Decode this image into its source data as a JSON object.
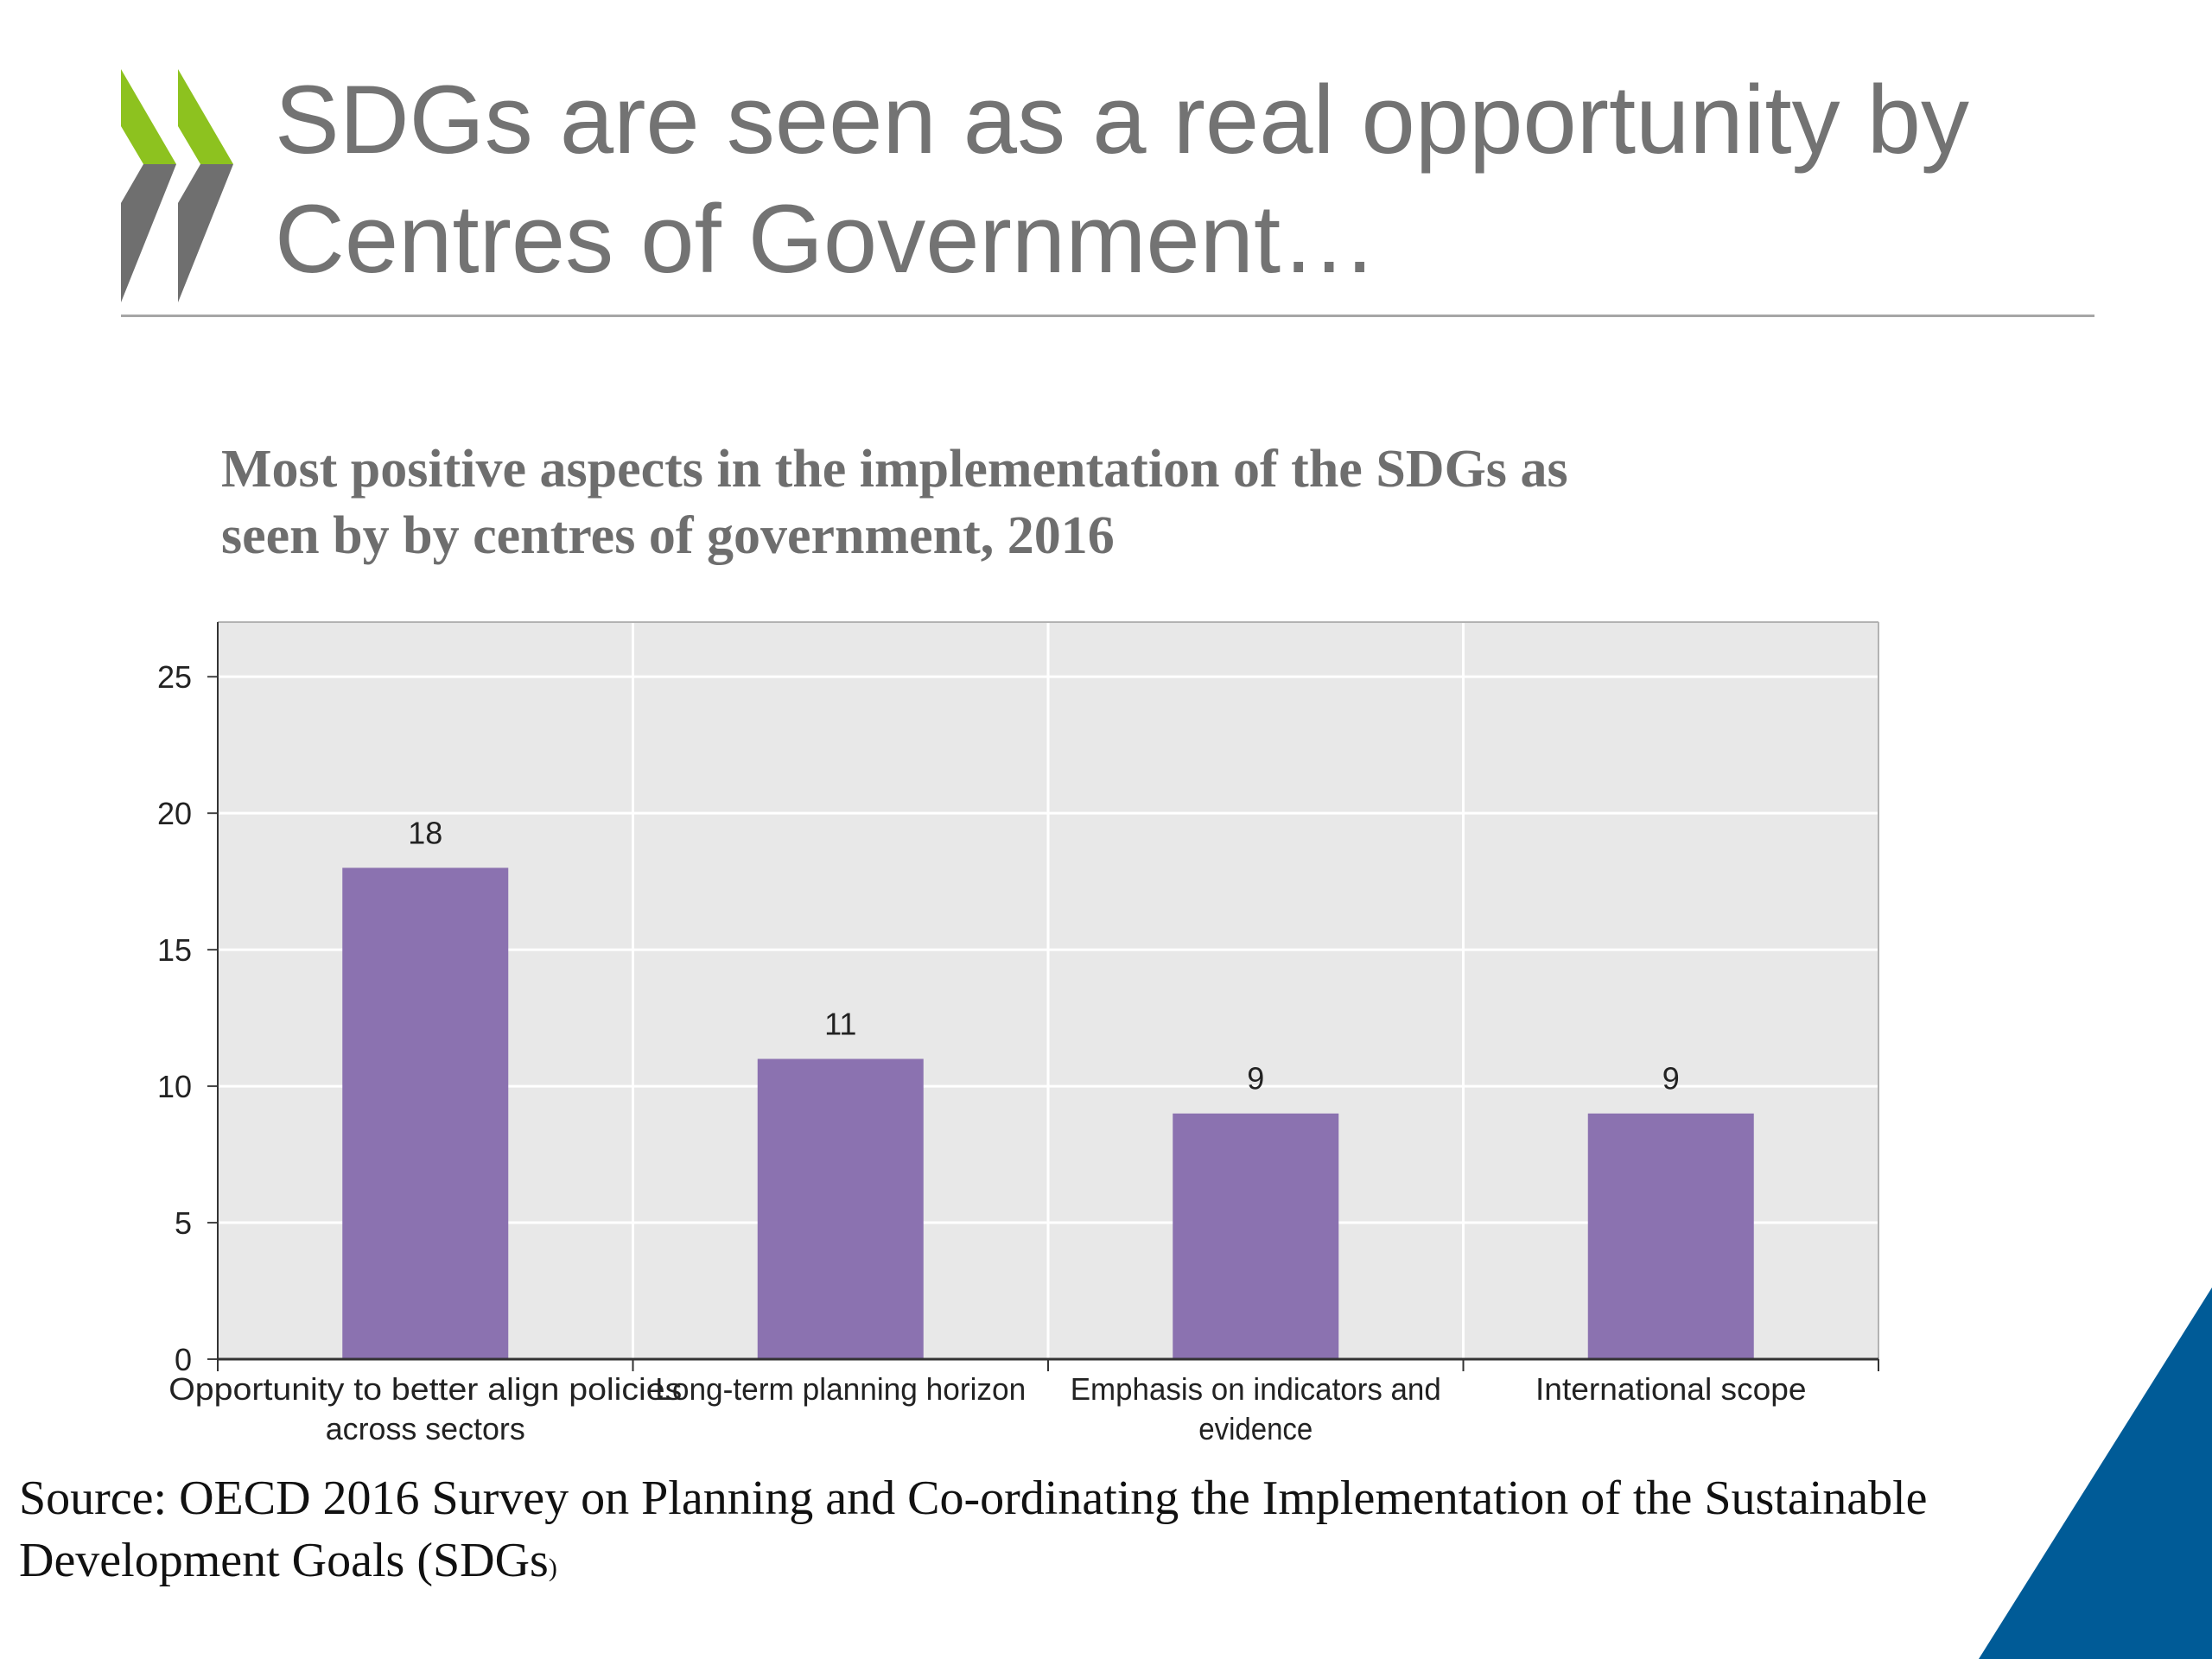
{
  "slide": {
    "title_line1": "SDGs are seen as a real opportunity by",
    "title_line2": "Centres of Government…",
    "source_text": "Source: OECD 2016 Survey on Planning and Co-ordinating the Implementation of the Sustainable Development Goals (SDGs",
    "source_tail": ")"
  },
  "colors": {
    "bar": "#8B72B0",
    "plot_bg": "#E8E8E8",
    "logo_green": "#8DC21F",
    "logo_grey": "#6F6F6F",
    "corner_blue": "#005B97"
  },
  "chart_data": {
    "type": "bar",
    "title_line1": "Most positive aspects in the implementation of the SDGs as",
    "title_line2": "seen by by centres of government, 2016",
    "categories": [
      [
        "Opportunity to better align policies",
        "across sectors"
      ],
      [
        "Long-term planning horizon"
      ],
      [
        "Emphasis on indicators and",
        "evidence"
      ],
      [
        "International scope"
      ]
    ],
    "values": [
      18,
      11,
      9,
      9
    ],
    "data_labels": [
      "18",
      "11",
      "9",
      "9"
    ],
    "yticks": [
      "0",
      "5",
      "10",
      "15",
      "20",
      "25"
    ],
    "ylim": [
      0,
      27
    ],
    "xlabel": "",
    "ylabel": "",
    "grid": true
  }
}
